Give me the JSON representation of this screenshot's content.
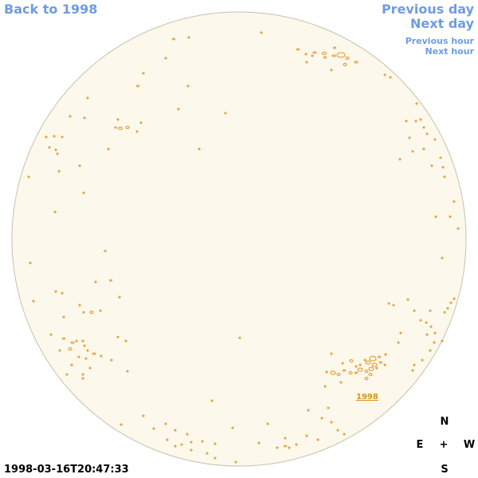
{
  "nav": {
    "back": "Back to 1998",
    "previous_day": "Previous day",
    "next_day": "Next day",
    "previous_hour": "Previous hour",
    "next_hour": "Next hour"
  },
  "compass": {
    "north": "N",
    "east": "E",
    "center": "+",
    "west": "W",
    "south": "S"
  },
  "timestamp": "1998-03-16T20:47:33",
  "region_label": "1998",
  "colors": {
    "link": "#6f9ce0",
    "disk_fill": "#fdf8ec",
    "disk_edge": "#c9bfae",
    "contour": "#e0901a"
  }
}
